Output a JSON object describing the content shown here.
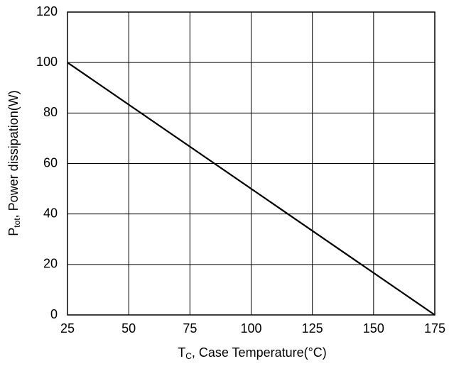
{
  "chart_data": {
    "type": "line",
    "x_label": {
      "symbol": "T",
      "subscript": "C",
      "text": ", Case Temperature(°C)"
    },
    "y_label": {
      "symbol": "P",
      "subscript": "tot",
      "text": ", Power dissipation(W)"
    },
    "x": [
      25,
      175
    ],
    "series": [
      {
        "color": "#000000",
        "values": [
          100,
          0
        ]
      }
    ],
    "xlim": [
      25,
      175
    ],
    "xticks": [
      25,
      50,
      75,
      100,
      125,
      150,
      175
    ],
    "ylim": [
      0,
      120
    ],
    "yticks": [
      0,
      20,
      40,
      60,
      80,
      100,
      120
    ],
    "grid": true
  }
}
